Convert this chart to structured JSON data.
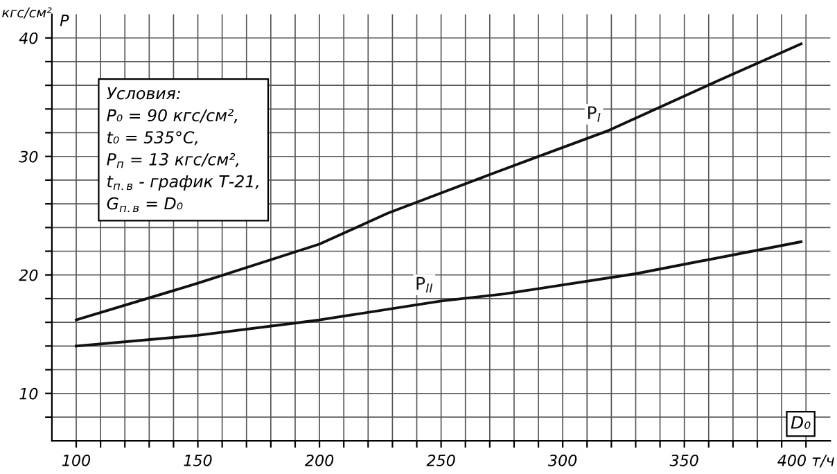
{
  "chart_data": {
    "type": "line",
    "ylabel": "кгс/см²",
    "xlabel": "D₀",
    "annotations": [
      "P",
      "Условия:\nP₀ = 90 кгс/см²,\nt₀ = 535°C,\nP$_{п}$ = 13 кгс/см²,\nt$_{п.в}$ - график Т-21,\nG$_{п.в}$ = D₀"
    ],
    "series": [
      {
        "name": "P$_{I}$",
        "color": "#111111",
        "x": [
          100,
          150,
          200,
          228,
          273,
          319,
          364,
          398
        ],
        "values": [
          16.2,
          19.3,
          22.6,
          25.2,
          28.7,
          32.2,
          36.4,
          39.5
        ]
      },
      {
        "name": "P$_{II}$",
        "color": "#111111",
        "x": [
          100,
          150,
          200,
          250,
          276,
          330,
          398
        ],
        "values": [
          14.0,
          14.9,
          16.2,
          17.8,
          18.4,
          20.1,
          22.8
        ]
      }
    ],
    "xlim": [
      90,
      410
    ],
    "ylim": [
      6,
      42
    ],
    "xticks": [
      100,
      {
        "value": 110,
        "label": null
      },
      {
        "value": 120,
        "label": null
      },
      {
        "value": 130,
        "label": null
      },
      {
        "value": 140,
        "label": null
      },
      150,
      {
        "value": 160,
        "label": null
      },
      {
        "value": 170,
        "label": null
      },
      {
        "value": 180,
        "label": null
      },
      {
        "value": 190,
        "label": null
      },
      200,
      {
        "value": 210,
        "label": null
      },
      {
        "value": 220,
        "label": null
      },
      {
        "value": 230,
        "label": null
      },
      {
        "value": 240,
        "label": null
      },
      250,
      {
        "value": 260,
        "label": null
      },
      {
        "value": 270,
        "label": null
      },
      {
        "value": 280,
        "label": null
      },
      {
        "value": 290,
        "label": null
      },
      300,
      {
        "value": 310,
        "label": null
      },
      {
        "value": 320,
        "label": null
      },
      {
        "value": 330,
        "label": null
      },
      {
        "value": 340,
        "label": null
      },
      350,
      {
        "value": 360,
        "label": null
      },
      {
        "value": 370,
        "label": null
      },
      {
        "value": 380,
        "label": null
      },
      {
        "value": 390,
        "label": null
      },
      {
        "value": 400,
        "label": "400 т/ч"
      }
    ],
    "yticks": [
      {
        "value": 8,
        "label": null
      },
      10,
      {
        "value": 12,
        "label": null
      },
      {
        "value": 14,
        "label": null
      },
      {
        "value": 16,
        "label": null
      },
      {
        "value": 18,
        "label": null
      },
      20,
      {
        "value": 22,
        "label": null
      },
      {
        "value": 24,
        "label": null
      },
      {
        "value": 26,
        "label": null
      },
      {
        "value": 28,
        "label": null
      },
      30,
      {
        "value": 32,
        "label": null
      },
      {
        "value": 34,
        "label": null
      },
      {
        "value": 36,
        "label": null
      },
      {
        "value": 38,
        "label": null
      },
      40
    ],
    "grid": true,
    "legend": false,
    "marker": "none",
    "line_style": "solid"
  }
}
